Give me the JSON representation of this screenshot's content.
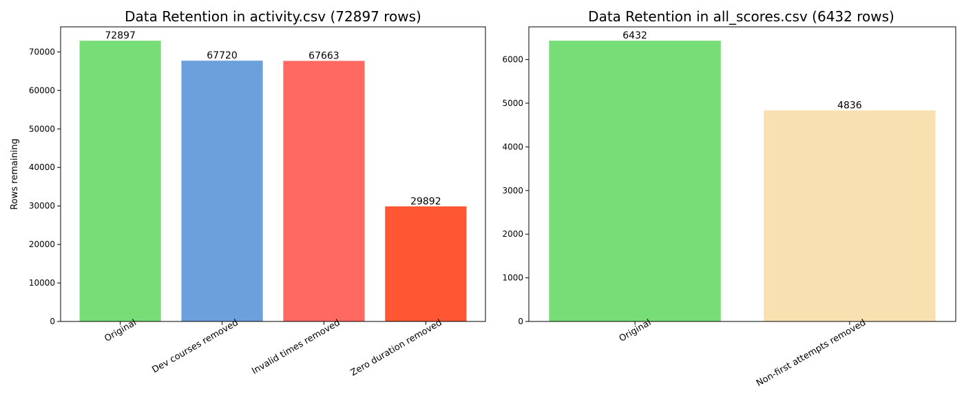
{
  "chart_data": [
    {
      "type": "bar",
      "title": "Data Retention in activity.csv (72897 rows)",
      "xlabel": "",
      "ylabel": "Rows remaining",
      "categories": [
        "Original",
        "Dev courses removed",
        "Invalid times removed",
        "Zero duration removed"
      ],
      "values": [
        72897,
        67720,
        67663,
        29892
      ],
      "colors": [
        "#77dd77",
        "#6ca0dc",
        "#ff6961",
        "#ff5733"
      ],
      "ylim": [
        0,
        76500
      ],
      "yticks": [
        0,
        10000,
        20000,
        30000,
        40000,
        50000,
        60000,
        70000
      ],
      "grid": false,
      "legend": "none"
    },
    {
      "type": "bar",
      "title": "Data Retention in all_scores.csv (6432 rows)",
      "xlabel": "",
      "ylabel": "",
      "categories": [
        "Original",
        "Non-first attempts removed"
      ],
      "values": [
        6432,
        4836
      ],
      "colors": [
        "#77dd77",
        "#f9e0b0"
      ],
      "ylim": [
        0,
        6750
      ],
      "yticks": [
        0,
        1000,
        2000,
        3000,
        4000,
        5000,
        6000
      ],
      "grid": false,
      "legend": "none"
    }
  ]
}
